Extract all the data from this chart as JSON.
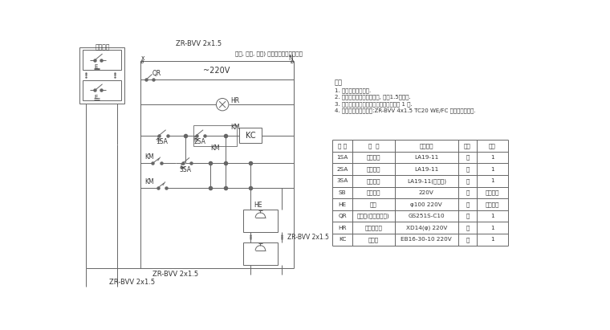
{
  "background": "#ffffff",
  "line_color": "#666666",
  "text_color": "#333333",
  "top_label": "等门, 前流, 橘箱) 信号灯及橘箱门上安装",
  "cable_label_top": "ZR-BVV 2x1.5",
  "cable_label_bottom1": "ZR-BVV 2x1.5",
  "cable_label_bottom2": "ZR-BVV 2x1.5",
  "cable_label_right": "ZR-BVV 2x1.5",
  "panel_label": "被控装置",
  "voltage_label": "~220V",
  "notes_title": "说明",
  "notes": [
    "1. 增加火灾报警装备.",
    "2. 控制箱要在水泵控制箱旁, 距离1.5米判距.",
    "3. 水泵房组及警铃合着每个消火栓均各组 1 个.",
    "4. 管线及桌皮膜组织缆:ZR-BVV 4x1.5 TC20 WE/FC 暗端防火管敷设."
  ],
  "table_headers": [
    "符 号",
    "名  称",
    "型号规格",
    "单位",
    "数量"
  ],
  "table_rows": [
    [
      "1SA",
      "停止按钮",
      "LA19-11",
      "个",
      "1"
    ],
    [
      "2SA",
      "启动按钮",
      "LA19-11",
      "个",
      "1"
    ],
    [
      "3SA",
      "消音按钮",
      "LA19-11(带锁键)",
      "个",
      "1"
    ],
    [
      "SB",
      "被控按钮",
      "220V",
      "个",
      "同消火栓"
    ],
    [
      "HE",
      "警铃",
      "φ100 220V",
      "个",
      "同消火栓"
    ],
    [
      "QR",
      "断路器(带漏电保护)",
      "GS251S-C10",
      "个",
      "1"
    ],
    [
      "HR",
      "电源指示灯",
      "XD14(φ) 220V",
      "个",
      "1"
    ],
    [
      "KC",
      "接触器",
      "EB16-30-10 220V",
      "个",
      "1"
    ]
  ]
}
